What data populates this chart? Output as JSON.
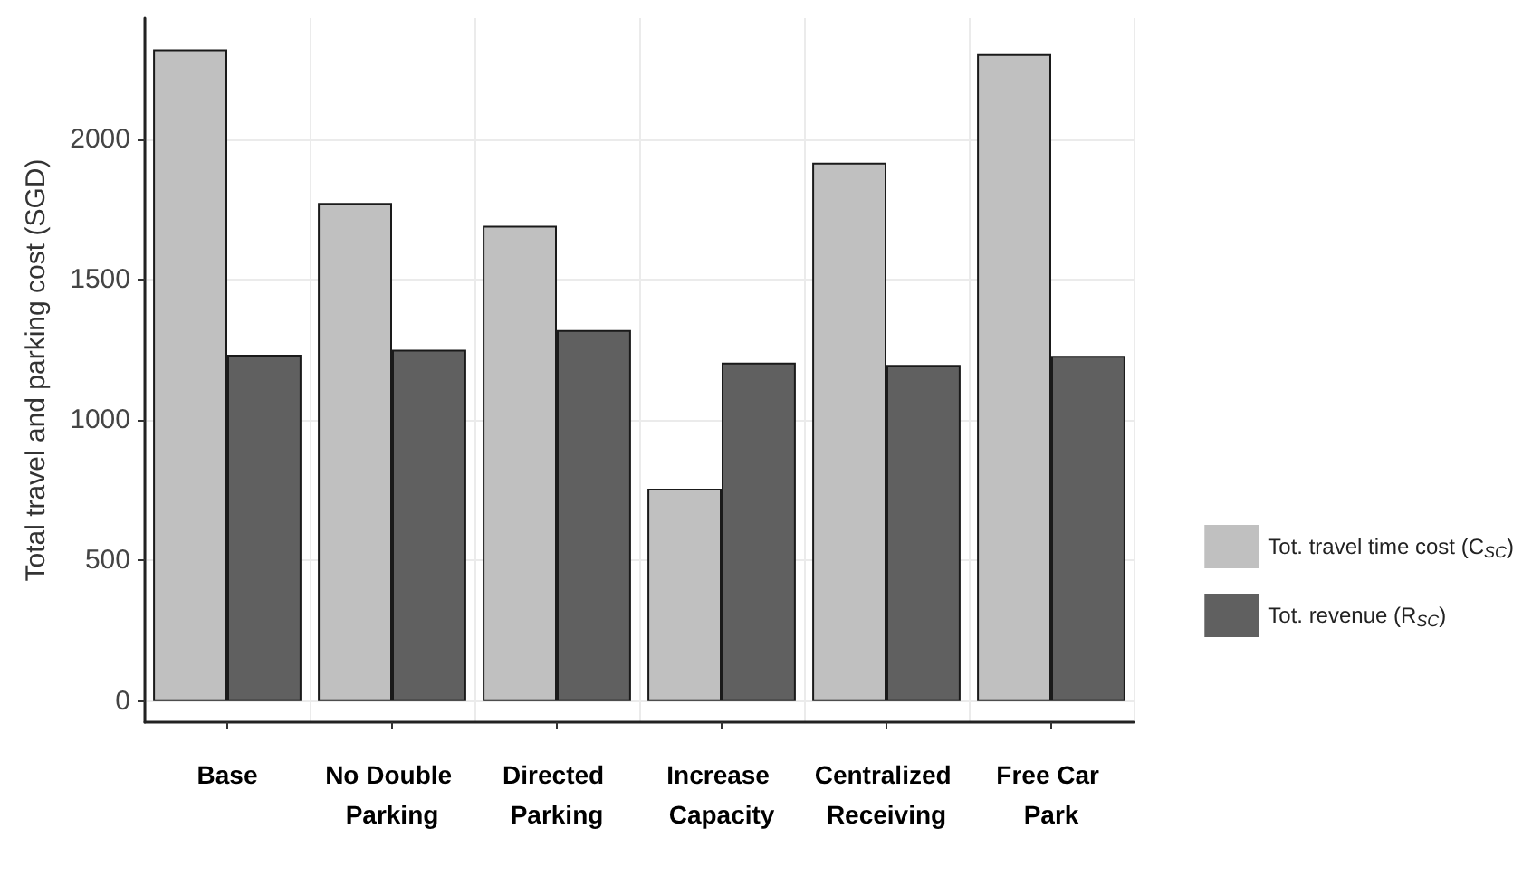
{
  "chart_data": {
    "type": "bar",
    "ylabel": "Total travel and parking cost (SGD)",
    "categories": [
      "Base",
      "No Double Parking",
      "Directed Parking",
      "Increase Capacity",
      "Centralized Receiving",
      "Free Car Park"
    ],
    "series": [
      {
        "name": "Tot. travel time cost (C$_{SC}$)",
        "color": "#c0c0c0",
        "values": [
          2319,
          1772,
          1691,
          756,
          1916,
          2302
        ]
      },
      {
        "name": "Tot. revenue (R$_{SC}$)",
        "color": "#606060",
        "values": [
          1232,
          1250,
          1320,
          1204,
          1196,
          1228
        ]
      }
    ],
    "ylim": [
      -75,
      2430
    ],
    "yticks": [
      0,
      500,
      1000,
      1500,
      2000
    ],
    "grid": true,
    "legend": "right"
  }
}
